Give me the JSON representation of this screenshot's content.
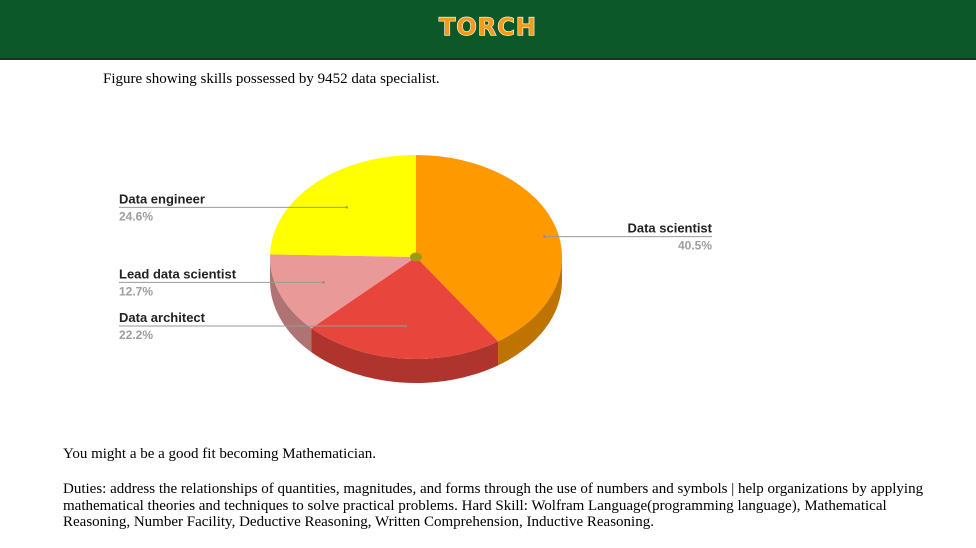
{
  "header": {
    "logo_text": "TORCH",
    "bar_color": "#0d5828",
    "logo_color": "#f59a1c"
  },
  "caption": "Figure showing skills possessed by 9452 data specialist.",
  "chart_data": {
    "type": "pie",
    "title": "",
    "slices": [
      {
        "label": "Data scientist",
        "value": 40.5,
        "value_label": "40.5%",
        "color": "#ff9900",
        "side_color": "#bf7300"
      },
      {
        "label": "Data architect",
        "value": 22.2,
        "value_label": "22.2%",
        "color": "#e8453c",
        "side_color": "#ae342d"
      },
      {
        "label": "Lead data scientist",
        "value": 12.7,
        "value_label": "12.7%",
        "color": "#ea9999",
        "side_color": "#af7373"
      },
      {
        "label": "Data engineer",
        "value": 24.6,
        "value_label": "24.6%",
        "color": "#ffff00",
        "side_color": "#bfbf00"
      }
    ],
    "style": "3d",
    "legend": "labels with leader lines"
  },
  "result": {
    "fit_text": "You might a be a good fit becoming Mathematician.",
    "duties_text": "Duties: address the relationships of quantities, magnitudes, and forms through the use of numbers and symbols | help organizations by applying mathematical theories and techniques to solve practical problems. Hard Skill: Wolfram Language(programming language), Mathematical Reasoning, Number Facility, Deductive Reasoning, Written Comprehension, Inductive Reasoning."
  }
}
